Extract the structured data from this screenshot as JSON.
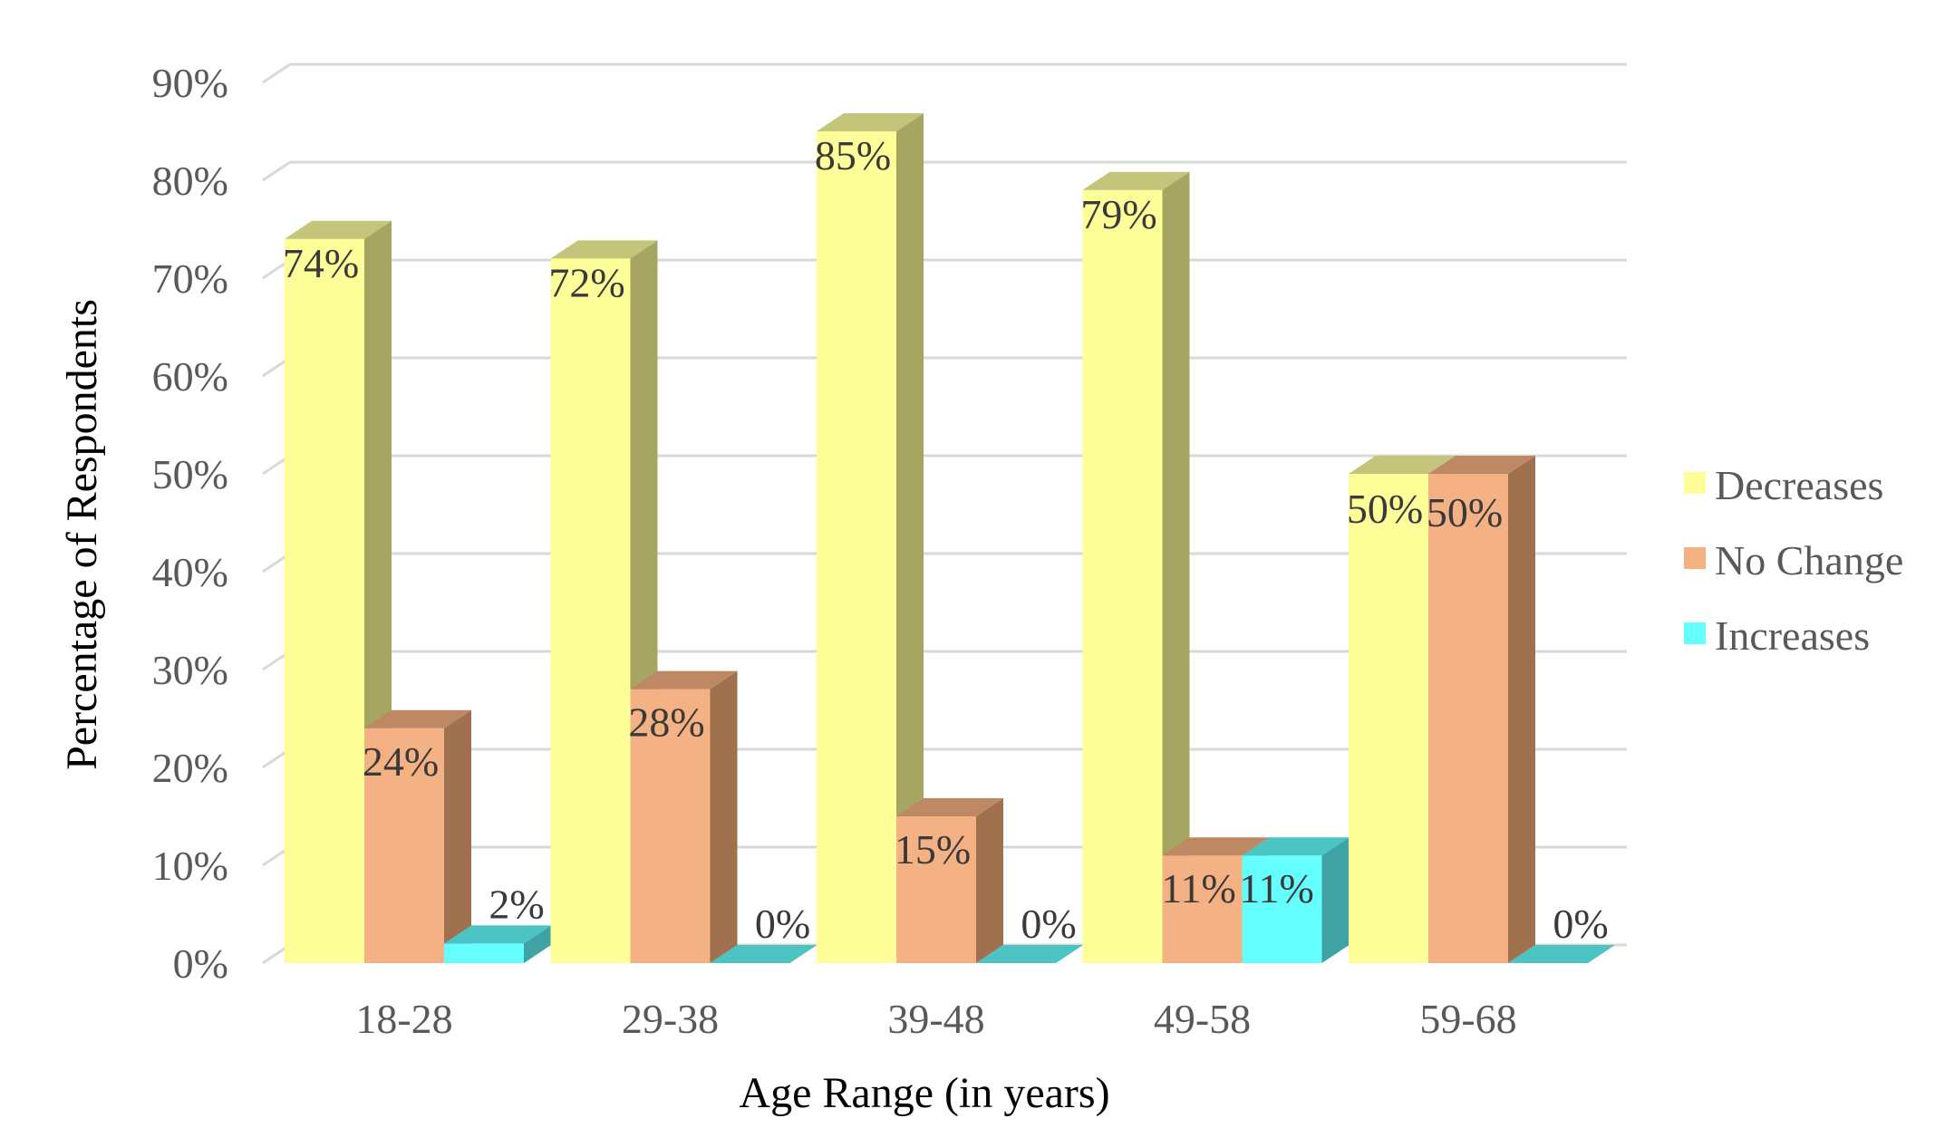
{
  "chart_data": {
    "type": "bar",
    "style": "3d-clustered-column",
    "categories": [
      "18-28",
      "29-38",
      "39-48",
      "49-58",
      "59-68"
    ],
    "series": [
      {
        "name": "Decreases",
        "values": [
          74,
          72,
          85,
          79,
          50
        ],
        "labels": [
          "74%",
          "72%",
          "85%",
          "79%",
          "50%"
        ],
        "color": "#FFFF99",
        "side_color": "#A6A662",
        "top_color": "#C4C47A"
      },
      {
        "name": "No Change",
        "values": [
          24,
          28,
          15,
          11,
          50
        ],
        "labels": [
          "24%",
          "28%",
          "15%",
          "11%",
          "50%"
        ],
        "color": "#F4B183",
        "side_color": "#A0714F",
        "top_color": "#BE8864"
      },
      {
        "name": "Increases",
        "values": [
          2,
          0,
          0,
          11,
          0
        ],
        "labels": [
          "2%",
          "0%",
          "0%",
          "11%",
          "0%"
        ],
        "color": "#66FFFF",
        "side_color": "#3FA3A3",
        "top_color": "#4CC4C4"
      }
    ],
    "y_ticks": [
      "0%",
      "10%",
      "20%",
      "30%",
      "40%",
      "50%",
      "60%",
      "70%",
      "80%",
      "90%"
    ],
    "ylim": [
      0,
      90
    ],
    "xlabel": "Age Range (in years)",
    "ylabel": "Percentage of Respondents",
    "legend": {
      "position": "right",
      "entries": [
        "Decreases",
        "No Change",
        "Increases"
      ]
    },
    "grid": true,
    "gridline_color": "#D9D9D9"
  }
}
